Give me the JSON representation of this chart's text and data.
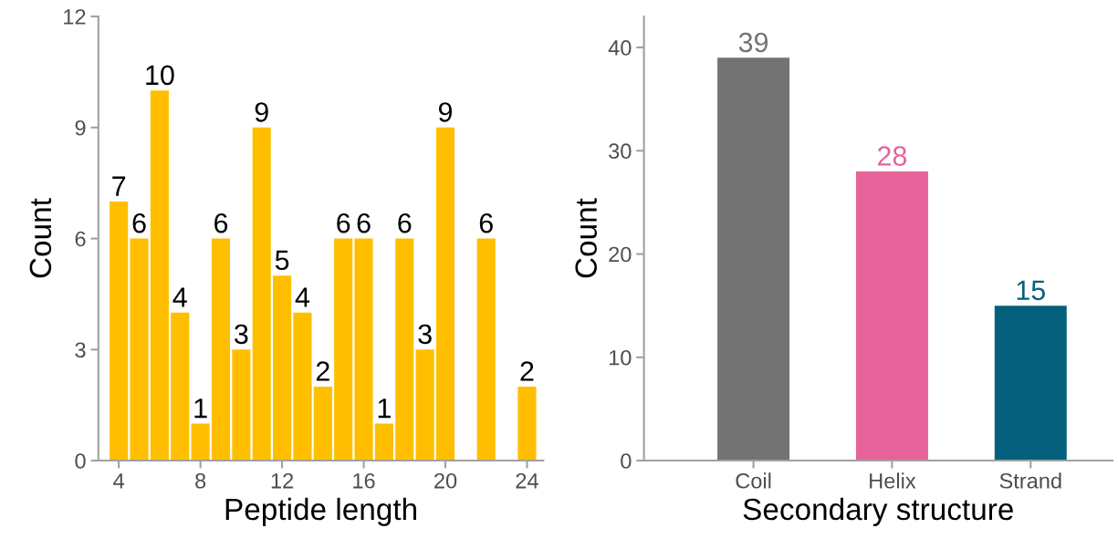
{
  "chart_data": [
    {
      "type": "bar",
      "xlabel": "Peptide length",
      "ylabel": "Count",
      "x": [
        4,
        5,
        6,
        7,
        8,
        9,
        10,
        11,
        12,
        13,
        14,
        15,
        16,
        17,
        18,
        19,
        20,
        22,
        24
      ],
      "values": [
        7,
        6,
        10,
        4,
        1,
        6,
        3,
        9,
        5,
        4,
        2,
        6,
        6,
        1,
        6,
        3,
        9,
        6,
        2
      ],
      "color": "#ffbf00",
      "xlim": [
        3,
        24.8
      ],
      "xticks": [
        4,
        8,
        12,
        16,
        20,
        24
      ],
      "ylim": [
        0,
        12
      ],
      "yticks": [
        0,
        3,
        6,
        9,
        12
      ],
      "grid": false,
      "data_labels": true
    },
    {
      "type": "bar",
      "xlabel": "Secondary structure",
      "ylabel": "Count",
      "categories": [
        "Coil",
        "Helix",
        "Strand"
      ],
      "values": [
        39,
        28,
        15
      ],
      "colors": [
        "#737373",
        "#e56399",
        "#04607a"
      ],
      "ylim": [
        0,
        43
      ],
      "yticks": [
        0,
        10,
        20,
        30,
        40
      ],
      "grid": false,
      "data_labels": true
    }
  ]
}
